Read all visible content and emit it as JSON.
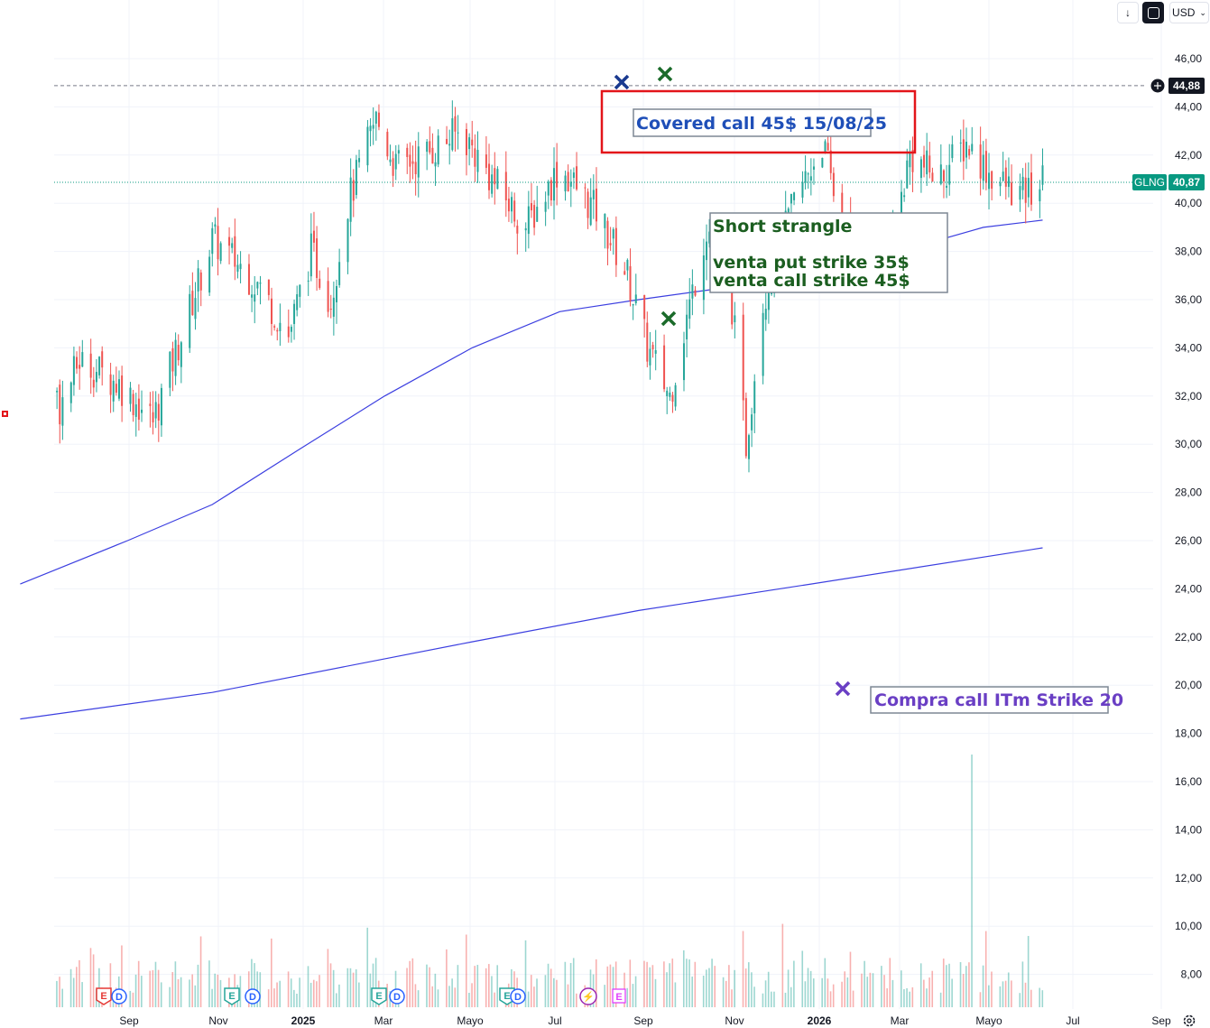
{
  "toolbar": {
    "download_icon": "arrow-down-icon",
    "fit_icon": "fit-screen-icon",
    "currency": "USD",
    "currency_icon": "chevron-down-icon"
  },
  "colors": {
    "up": "#26a69a",
    "down": "#ef5350",
    "ma": "#3c3fe0",
    "ticker_badge": "#089981",
    "red_box": "#e3151a",
    "blue_text": "#1f4fb8",
    "green_text": "#1b5e20",
    "purple_text": "#6a3fc4",
    "x_navy": "#1a3a8f",
    "x_green": "#1b6b2a",
    "x_purple": "#6a3fc4"
  },
  "price_axis": {
    "labels": [
      "46,00",
      "44,00",
      "42,00",
      "40,00",
      "38,00",
      "36,00",
      "34,00",
      "32,00",
      "30,00",
      "28,00",
      "26,00",
      "24,00",
      "22,00",
      "20,00",
      "18,00",
      "16,00",
      "14,00",
      "12,00",
      "10,00",
      "8,00"
    ],
    "crosshair_label": "44,88",
    "last_ticker": "GLNG",
    "last_price": "40,87"
  },
  "time_axis": {
    "labels": [
      {
        "text": "Sep",
        "bold": false
      },
      {
        "text": "Nov",
        "bold": false
      },
      {
        "text": "2025",
        "bold": true
      },
      {
        "text": "Mar",
        "bold": false
      },
      {
        "text": "Mayo",
        "bold": false
      },
      {
        "text": "Jul",
        "bold": false
      },
      {
        "text": "Sep",
        "bold": false
      },
      {
        "text": "Nov",
        "bold": false
      },
      {
        "text": "2026",
        "bold": true
      },
      {
        "text": "Mar",
        "bold": false
      },
      {
        "text": "Mayo",
        "bold": false
      },
      {
        "text": "Jul",
        "bold": false
      },
      {
        "text": "Sep",
        "bold": false
      }
    ],
    "settings_icon": "gear-icon"
  },
  "annotations": {
    "covered_call": "Covered call 45$ 15/08/25",
    "strangle_title": "Short strangle",
    "strangle_put": "venta put strike 35$",
    "strangle_call": "venta call strike 45$",
    "itm_call": "Compra call ITm Strike 20"
  },
  "events": [
    {
      "kind": "earnings-red",
      "label": "E"
    },
    {
      "kind": "dividend",
      "label": "D"
    },
    {
      "kind": "earnings-green",
      "label": "E"
    },
    {
      "kind": "dividend",
      "label": "D"
    },
    {
      "kind": "earnings-green",
      "label": "E"
    },
    {
      "kind": "dividend",
      "label": "D"
    },
    {
      "kind": "earnings-green",
      "label": "E"
    },
    {
      "kind": "dividend",
      "label": "D"
    },
    {
      "kind": "flash",
      "label": "⚡"
    },
    {
      "kind": "earnings-future",
      "label": "E"
    }
  ],
  "chart_data": {
    "type": "candlestick",
    "symbol": "GLNG",
    "currency": "USD",
    "ylim": [
      7.4,
      47.9
    ],
    "last_price": 40.87,
    "crosshair_price": 44.88,
    "candles_waypoints": [
      {
        "date": "2024-07-25",
        "close": 34.5
      },
      {
        "date": "2024-08-01",
        "close": 36.0
      },
      {
        "date": "2024-08-08",
        "close": 31.5
      },
      {
        "date": "2024-08-15",
        "close": 33.5
      },
      {
        "date": "2024-08-29",
        "close": 32.5
      },
      {
        "date": "2024-09-10",
        "close": 31.0
      },
      {
        "date": "2024-09-20",
        "close": 34.5
      },
      {
        "date": "2024-10-01",
        "close": 38.5
      },
      {
        "date": "2024-10-10",
        "close": 37.5
      },
      {
        "date": "2024-10-18",
        "close": 36.5
      },
      {
        "date": "2024-10-28",
        "close": 34.5
      },
      {
        "date": "2024-11-05",
        "close": 38.0
      },
      {
        "date": "2024-11-12",
        "close": 36.0
      },
      {
        "date": "2024-11-18",
        "close": 40.0
      },
      {
        "date": "2024-11-28",
        "close": 43.5
      },
      {
        "date": "2024-12-05",
        "close": 41.5
      },
      {
        "date": "2024-12-15",
        "close": 42.0
      },
      {
        "date": "2024-12-28",
        "close": 43.0
      },
      {
        "date": "2025-01-08",
        "close": 41.0
      },
      {
        "date": "2025-01-20",
        "close": 39.0
      },
      {
        "date": "2025-02-01",
        "close": 41.5
      },
      {
        "date": "2025-02-15",
        "close": 39.5
      },
      {
        "date": "2025-02-25",
        "close": 37.0
      },
      {
        "date": "2025-03-04",
        "close": 34.0
      },
      {
        "date": "2025-03-12",
        "close": 32.0
      },
      {
        "date": "2025-03-25",
        "close": 39.0
      },
      {
        "date": "2025-04-01",
        "close": 38.0
      },
      {
        "date": "2025-04-08",
        "close": 30.0
      },
      {
        "date": "2025-04-14",
        "close": 36.0
      },
      {
        "date": "2025-04-25",
        "close": 40.0
      },
      {
        "date": "2025-05-05",
        "close": 42.5
      },
      {
        "date": "2025-05-12",
        "close": 39.0
      },
      {
        "date": "2025-05-20",
        "close": 38.0
      },
      {
        "date": "2025-05-28",
        "close": 37.5
      },
      {
        "date": "2025-06-05",
        "close": 42.0
      },
      {
        "date": "2025-06-15",
        "close": 41.0
      },
      {
        "date": "2025-06-25",
        "close": 42.5
      },
      {
        "date": "2025-07-05",
        "close": 41.0
      },
      {
        "date": "2025-07-15",
        "close": 40.3
      },
      {
        "date": "2025-07-22",
        "close": 40.87
      }
    ],
    "moving_averages": [
      {
        "name": "MA short",
        "points": [
          {
            "date": "2024-07-25",
            "value": 24.2
          },
          {
            "date": "2024-09-01",
            "value": 26.0
          },
          {
            "date": "2024-10-01",
            "value": 27.5
          },
          {
            "date": "2024-11-01",
            "value": 29.8
          },
          {
            "date": "2024-12-01",
            "value": 32.0
          },
          {
            "date": "2025-01-01",
            "value": 34.0
          },
          {
            "date": "2025-02-01",
            "value": 35.5
          },
          {
            "date": "2025-03-01",
            "value": 36.0
          },
          {
            "date": "2025-04-01",
            "value": 36.5
          },
          {
            "date": "2025-05-01",
            "value": 37.2
          },
          {
            "date": "2025-06-01",
            "value": 38.0
          },
          {
            "date": "2025-07-01",
            "value": 39.0
          },
          {
            "date": "2025-07-22",
            "value": 39.3
          }
        ]
      },
      {
        "name": "MA long",
        "points": [
          {
            "date": "2024-07-25",
            "value": 18.6
          },
          {
            "date": "2024-10-01",
            "value": 19.7
          },
          {
            "date": "2025-01-01",
            "value": 21.8
          },
          {
            "date": "2025-03-01",
            "value": 23.1
          },
          {
            "date": "2025-05-01",
            "value": 24.2
          },
          {
            "date": "2025-07-22",
            "value": 25.7
          }
        ]
      }
    ],
    "markers": [
      {
        "shape": "x",
        "date": "2025-08-15",
        "price": 44.9,
        "color": "navy"
      },
      {
        "shape": "x",
        "date": "2025-09-03",
        "price": 45.3,
        "color": "green"
      },
      {
        "shape": "x",
        "date": "2025-09-03",
        "price": 35.2,
        "color": "green"
      },
      {
        "shape": "x",
        "date": "2026-01-15",
        "price": 19.9,
        "color": "purple"
      }
    ],
    "volume": "shown as histogram bars along the bottom; one spike near 2025-06-27"
  }
}
